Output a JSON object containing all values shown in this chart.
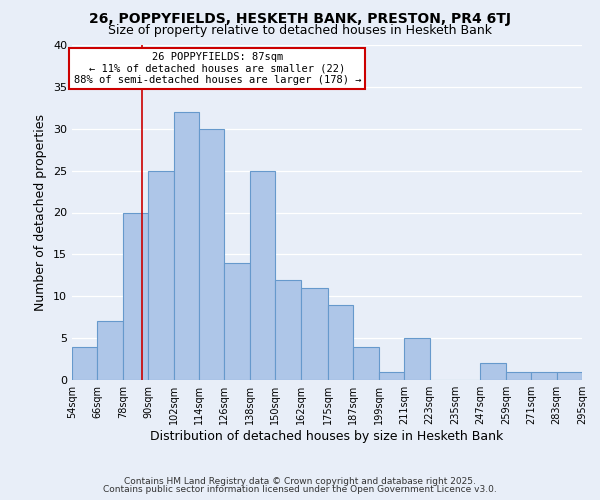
{
  "title1": "26, POPPYFIELDS, HESKETH BANK, PRESTON, PR4 6TJ",
  "title2": "Size of property relative to detached houses in Hesketh Bank",
  "xlabel": "Distribution of detached houses by size in Hesketh Bank",
  "ylabel": "Number of detached properties",
  "bar_left_edges": [
    54,
    66,
    78,
    90,
    102,
    114,
    126,
    138,
    150,
    162,
    175,
    187,
    199,
    211,
    223,
    235,
    247,
    259,
    271,
    283
  ],
  "bar_widths": [
    12,
    12,
    12,
    12,
    12,
    12,
    12,
    12,
    12,
    13,
    12,
    12,
    12,
    12,
    12,
    12,
    12,
    12,
    12,
    12
  ],
  "bar_heights": [
    4,
    7,
    20,
    25,
    32,
    30,
    14,
    25,
    12,
    11,
    9,
    4,
    1,
    5,
    0,
    0,
    2,
    1,
    1,
    1
  ],
  "bar_color": "#aec6e8",
  "bar_edge_color": "#6699cc",
  "property_line_x": 87,
  "annotation_title": "26 POPPYFIELDS: 87sqm",
  "annotation_line1": "← 11% of detached houses are smaller (22)",
  "annotation_line2": "88% of semi-detached houses are larger (178) →",
  "annotation_box_color": "#ffffff",
  "annotation_box_edge": "#cc0000",
  "vline_color": "#cc0000",
  "ylim": [
    0,
    40
  ],
  "yticks": [
    0,
    5,
    10,
    15,
    20,
    25,
    30,
    35,
    40
  ],
  "xlim": [
    54,
    295
  ],
  "xtick_labels": [
    "54sqm",
    "66sqm",
    "78sqm",
    "90sqm",
    "102sqm",
    "114sqm",
    "126sqm",
    "138sqm",
    "150sqm",
    "162sqm",
    "175sqm",
    "187sqm",
    "199sqm",
    "211sqm",
    "223sqm",
    "235sqm",
    "247sqm",
    "259sqm",
    "271sqm",
    "283sqm",
    "295sqm"
  ],
  "xtick_positions": [
    54,
    66,
    78,
    90,
    102,
    114,
    126,
    138,
    150,
    162,
    175,
    187,
    199,
    211,
    223,
    235,
    247,
    259,
    271,
    283,
    295
  ],
  "background_color": "#e8eef8",
  "grid_color": "#ffffff",
  "footer1": "Contains HM Land Registry data © Crown copyright and database right 2025.",
  "footer2": "Contains public sector information licensed under the Open Government Licence v3.0."
}
